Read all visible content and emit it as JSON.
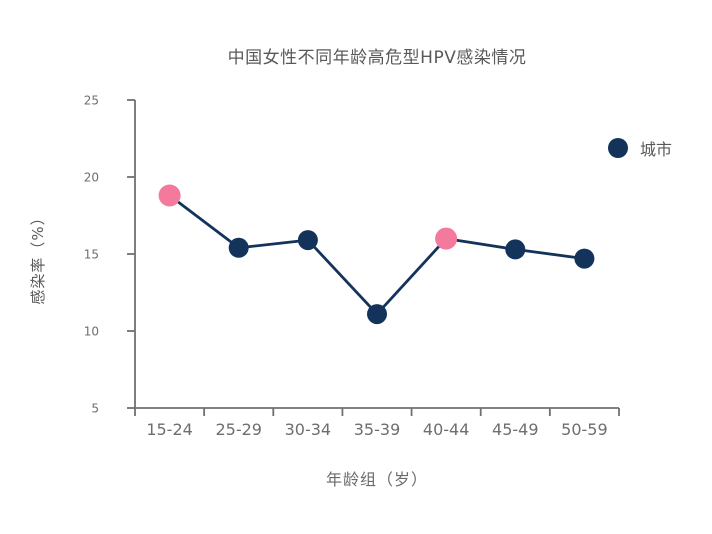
{
  "page": {
    "background_color": "#ffffff"
  },
  "chart_data": {
    "type": "line",
    "title": "中国女性不同年龄高危型HPV感染情况",
    "xlabel": "年龄组（岁）",
    "ylabel": "感染率（%）",
    "categories": [
      "15-24",
      "25-29",
      "30-34",
      "35-39",
      "40-44",
      "45-49",
      "50-59"
    ],
    "series": [
      {
        "name": "城市",
        "values": [
          18.8,
          15.4,
          15.9,
          11.1,
          16.0,
          15.3,
          14.7
        ]
      }
    ],
    "highlight_indices": [
      0,
      4
    ],
    "yticks": [
      5,
      10,
      15,
      20,
      25
    ],
    "ylim": [
      5,
      25
    ],
    "grid": false,
    "legend_position": "right",
    "colors": {
      "series": "#13335b",
      "highlight": "#f37a9d",
      "axis": "#707070",
      "title_text": "#595959",
      "tick_text": "#6e6e6e"
    }
  }
}
